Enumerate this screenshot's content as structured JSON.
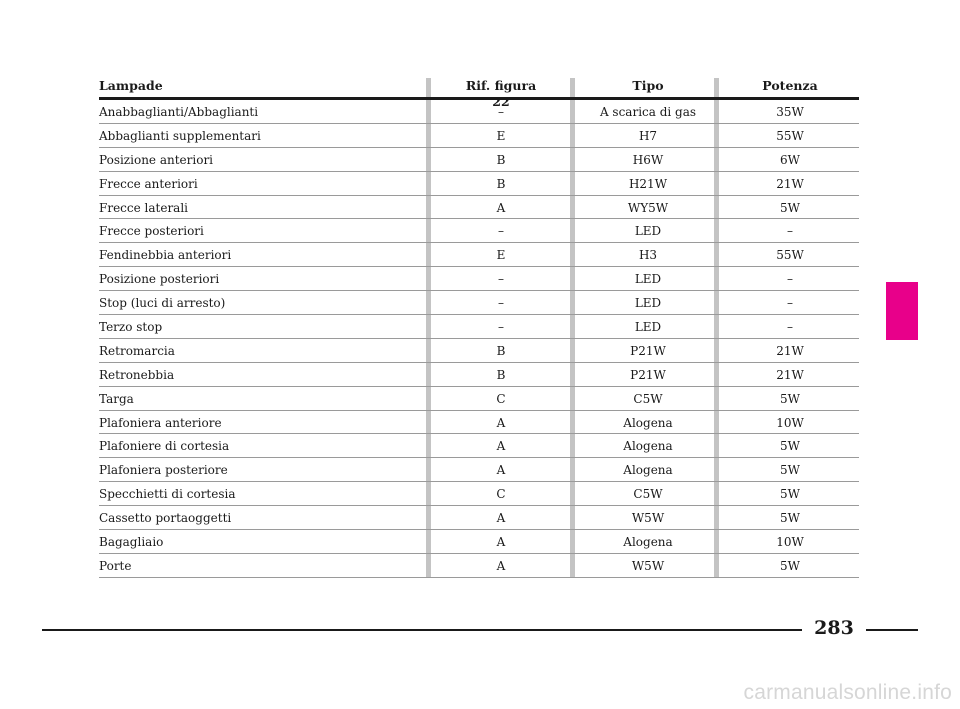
{
  "table": {
    "headers": {
      "lampade": "Lampade",
      "rif": "Rif. figura 22",
      "tipo": "Tipo",
      "potenza": "Potenza"
    },
    "rows": [
      {
        "name": "Anabbaglianti/Abbaglianti",
        "ref": "–",
        "tipo": "A scarica di gas",
        "potenza": "35W"
      },
      {
        "name": "Abbaglianti supplementari",
        "ref": "E",
        "tipo": "H7",
        "potenza": "55W"
      },
      {
        "name": "Posizione anteriori",
        "ref": "B",
        "tipo": "H6W",
        "potenza": "6W"
      },
      {
        "name": "Frecce anteriori",
        "ref": "B",
        "tipo": "H21W",
        "potenza": "21W"
      },
      {
        "name": "Frecce laterali",
        "ref": "A",
        "tipo": "WY5W",
        "potenza": "5W"
      },
      {
        "name": "Frecce posteriori",
        "ref": "–",
        "tipo": "LED",
        "potenza": "–"
      },
      {
        "name": "Fendinebbia anteriori",
        "ref": "E",
        "tipo": "H3",
        "potenza": "55W"
      },
      {
        "name": "Posizione posteriori",
        "ref": "–",
        "tipo": "LED",
        "potenza": "–"
      },
      {
        "name": "Stop (luci di arresto)",
        "ref": "–",
        "tipo": "LED",
        "potenza": "–"
      },
      {
        "name": "Terzo stop",
        "ref": "–",
        "tipo": "LED",
        "potenza": "–"
      },
      {
        "name": "Retromarcia",
        "ref": "B",
        "tipo": "P21W",
        "potenza": "21W"
      },
      {
        "name": "Retronebbia",
        "ref": "B",
        "tipo": "P21W",
        "potenza": "21W"
      },
      {
        "name": "Targa",
        "ref": "C",
        "tipo": "C5W",
        "potenza": "5W"
      },
      {
        "name": "Plafoniera anteriore",
        "ref": "A",
        "tipo": "Alogena",
        "potenza": "10W"
      },
      {
        "name": "Plafoniere di cortesia",
        "ref": "A",
        "tipo": "Alogena",
        "potenza": "5W"
      },
      {
        "name": "Plafoniera posteriore",
        "ref": "A",
        "tipo": "Alogena",
        "potenza": "5W"
      },
      {
        "name": "Specchietti di cortesia",
        "ref": "C",
        "tipo": "C5W",
        "potenza": "5W"
      },
      {
        "name": "Cassetto portaoggetti",
        "ref": "A",
        "tipo": "W5W",
        "potenza": "5W"
      },
      {
        "name": "Bagagliaio",
        "ref": "A",
        "tipo": "Alogena",
        "potenza": "10W"
      },
      {
        "name": "Porte",
        "ref": "A",
        "tipo": "W5W",
        "potenza": "5W"
      }
    ]
  },
  "footer": {
    "page_number": "283",
    "watermark": "carmanualsonline.info"
  },
  "colors": {
    "section_tab": "#e8008a",
    "column_divider": "#c4c4c4"
  }
}
